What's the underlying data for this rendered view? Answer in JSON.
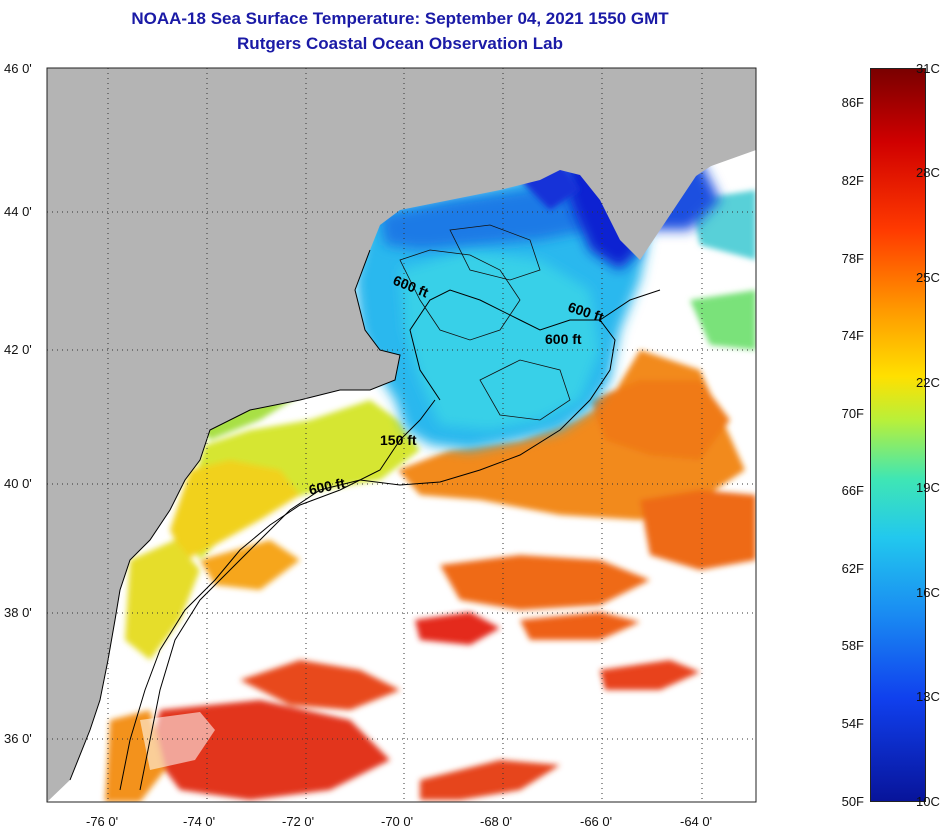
{
  "title": {
    "line1": "NOAA-18 Sea Surface Temperature:  September 04, 2021 1550 GMT",
    "line2": "Rutgers Coastal Ocean Observation Lab"
  },
  "map": {
    "lat_labels": [
      "46 0'",
      "44 0'",
      "42 0'",
      "40 0'",
      "38 0'",
      "36 0'"
    ],
    "lon_labels": [
      "-76 0'",
      "-74 0'",
      "-72 0'",
      "-70 0'",
      "-68 0'",
      "-66 0'",
      "-64 0'"
    ],
    "contour_labels": [
      "600 ft",
      "600 ft",
      "600 ft",
      "150 ft",
      "600 ft"
    ],
    "colors": {
      "land": "#b4b4b4",
      "cloud": "#ffffff",
      "cold": "#0a1ad6",
      "mid": "#1fd6ea",
      "warm": "#f28a1a",
      "hot": "#e01e1e"
    }
  },
  "colorbar": {
    "fahrenheit_labels": [
      "86F",
      "82F",
      "78F",
      "74F",
      "70F",
      "66F",
      "62F",
      "58F",
      "54F",
      "50F"
    ],
    "celsius_labels": [
      "31C",
      "28C",
      "25C",
      "22C",
      "19C",
      "16C",
      "13C",
      "10C"
    ],
    "range_c": [
      10,
      31
    ],
    "range_f": [
      50,
      88
    ]
  }
}
